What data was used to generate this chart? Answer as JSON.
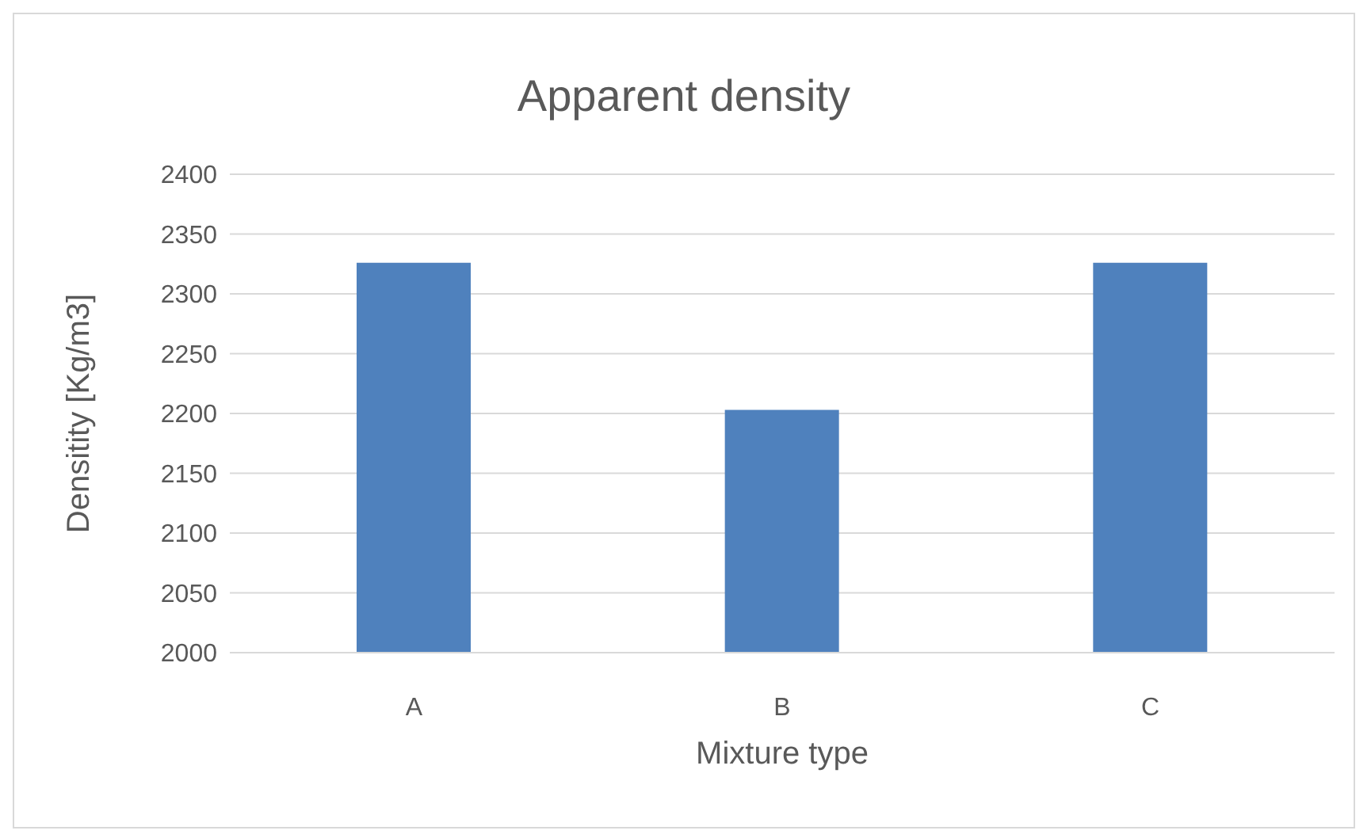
{
  "chart_data": {
    "type": "bar",
    "title": "Apparent density",
    "xlabel": "Mixture type",
    "ylabel": "Densitity [Kg/m3]",
    "categories": [
      "A",
      "B",
      "C"
    ],
    "values": [
      2326,
      2203,
      2326
    ],
    "color": "#4f81bd",
    "ylim": [
      2000,
      2400
    ],
    "yticks": [
      2000,
      2050,
      2100,
      2150,
      2200,
      2250,
      2300,
      2350,
      2400
    ],
    "grid": "y"
  }
}
